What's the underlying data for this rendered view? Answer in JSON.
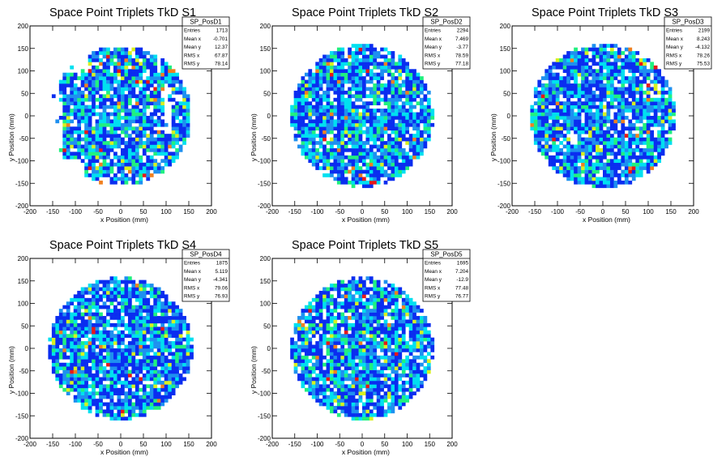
{
  "palette": [
    "#0a2df0",
    "#1e90f0",
    "#00e0f0",
    "#20f080",
    "#d8f020",
    "#f08020",
    "#e81818"
  ],
  "chart_data": [
    {
      "type": "heatmap",
      "title": "Space Point Triplets TkD S1",
      "xlabel": "x Position (mm)",
      "ylabel": "y Position (mm)",
      "xlim": [
        -200,
        200
      ],
      "ylim": [
        -200,
        200
      ],
      "xticks": [
        -200,
        -150,
        -100,
        -50,
        0,
        50,
        100,
        150,
        200
      ],
      "yticks": [
        -200,
        -150,
        -100,
        -50,
        0,
        50,
        100,
        150,
        200
      ],
      "bins": 50,
      "radius": 155,
      "seed": 11,
      "gaps": [
        {
          "x0": -150,
          "x1": -130,
          "y0": -160,
          "y1": 50
        },
        {
          "x0": 95,
          "x1": 115,
          "y0": -40,
          "y1": 60
        },
        {
          "x0": -160,
          "x1": -80,
          "y0": -160,
          "y1": -95
        },
        {
          "x0": 110,
          "x1": 160,
          "y0": -160,
          "y1": -90
        },
        {
          "x0": -160,
          "x1": -75,
          "y0": 95,
          "y1": 160
        }
      ],
      "stats": {
        "name": "SP_PosD1",
        "rows": [
          {
            "label": "Entries",
            "value": "1713"
          },
          {
            "label": "Mean x",
            "value": "-0.701"
          },
          {
            "label": "Mean y",
            "value": "12.37"
          },
          {
            "label": "RMS x",
            "value": "67.87"
          },
          {
            "label": "RMS y",
            "value": "78.14"
          }
        ]
      }
    },
    {
      "type": "heatmap",
      "title": "Space Point Triplets TkD S2",
      "xlabel": "x Position (mm)",
      "ylabel": "y Position (mm)",
      "xlim": [
        -200,
        200
      ],
      "ylim": [
        -200,
        200
      ],
      "xticks": [
        -200,
        -150,
        -100,
        -50,
        0,
        50,
        100,
        150,
        200
      ],
      "yticks": [
        -200,
        -150,
        -100,
        -50,
        0,
        50,
        100,
        150,
        200
      ],
      "bins": 50,
      "radius": 158,
      "seed": 23,
      "gaps": [],
      "stats": {
        "name": "SP_PosD2",
        "rows": [
          {
            "label": "Entries",
            "value": "2294"
          },
          {
            "label": "Mean x",
            "value": "7.469"
          },
          {
            "label": "Mean y",
            "value": "-3.77"
          },
          {
            "label": "RMS x",
            "value": "78.59"
          },
          {
            "label": "RMS y",
            "value": "77.18"
          }
        ]
      }
    },
    {
      "type": "heatmap",
      "title": "Space Point Triplets TkD S3",
      "xlabel": "x Position (mm)",
      "ylabel": "y Position (mm)",
      "xlim": [
        -200,
        200
      ],
      "ylim": [
        -200,
        200
      ],
      "xticks": [
        -200,
        -150,
        -100,
        -50,
        0,
        50,
        100,
        150,
        200
      ],
      "yticks": [
        -200,
        -150,
        -100,
        -50,
        0,
        50,
        100,
        150,
        200
      ],
      "bins": 50,
      "radius": 160,
      "seed": 37,
      "gaps": [],
      "stats": {
        "name": "SP_PosD3",
        "rows": [
          {
            "label": "Entries",
            "value": "2199"
          },
          {
            "label": "Mean x",
            "value": "8.243"
          },
          {
            "label": "Mean y",
            "value": "-4.132"
          },
          {
            "label": "RMS x",
            "value": "78.26"
          },
          {
            "label": "RMS y",
            "value": "75.53"
          }
        ]
      }
    },
    {
      "type": "heatmap",
      "title": "Space Point Triplets TkD S4",
      "xlabel": "x Position (mm)",
      "ylabel": "y Position (mm)",
      "xlim": [
        -200,
        200
      ],
      "ylim": [
        -200,
        200
      ],
      "xticks": [
        -200,
        -150,
        -100,
        -50,
        0,
        50,
        100,
        150,
        200
      ],
      "yticks": [
        -200,
        -150,
        -100,
        -50,
        0,
        50,
        100,
        150,
        200
      ],
      "bins": 50,
      "radius": 158,
      "seed": 53,
      "gaps": [],
      "stats": {
        "name": "SP_PosD4",
        "rows": [
          {
            "label": "Entries",
            "value": "1875"
          },
          {
            "label": "Mean x",
            "value": "5.119"
          },
          {
            "label": "Mean y",
            "value": "-4.341"
          },
          {
            "label": "RMS x",
            "value": "79.06"
          },
          {
            "label": "RMS y",
            "value": "76.93"
          }
        ]
      }
    },
    {
      "type": "heatmap",
      "title": "Space Point Triplets TkD S5",
      "xlabel": "x Position (mm)",
      "ylabel": "y Position (mm)",
      "xlim": [
        -200,
        200
      ],
      "ylim": [
        -200,
        200
      ],
      "xticks": [
        -200,
        -150,
        -100,
        -50,
        0,
        50,
        100,
        150,
        200
      ],
      "yticks": [
        -200,
        -150,
        -100,
        -50,
        0,
        50,
        100,
        150,
        200
      ],
      "bins": 50,
      "radius": 158,
      "seed": 71,
      "gaps": [],
      "stats": {
        "name": "SP_PosD5",
        "rows": [
          {
            "label": "Entries",
            "value": "1695"
          },
          {
            "label": "Mean x",
            "value": "7.204"
          },
          {
            "label": "Mean y",
            "value": "-12.9"
          },
          {
            "label": "RMS x",
            "value": "77.48"
          },
          {
            "label": "RMS y",
            "value": "76.77"
          }
        ]
      }
    }
  ]
}
